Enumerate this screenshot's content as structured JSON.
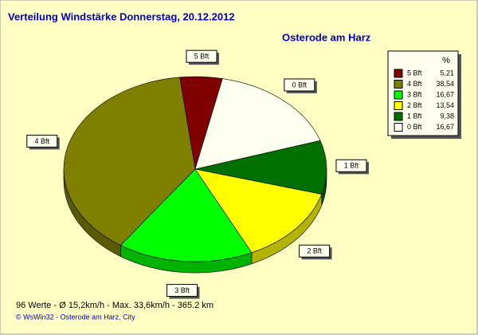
{
  "chart_data": {
    "type": "pie",
    "title": "Verteilung Windstärke  Donnerstag, 20.12.2012",
    "subtitle": "Osterode am Harz",
    "legend_title": "%",
    "categories": [
      "5 Bft",
      "4 Bft",
      "3 Bft",
      "2 Bft",
      "1 Bft",
      "0 Bft"
    ],
    "values": [
      5.21,
      38.54,
      16.67,
      13.54,
      9.38,
      16.67
    ],
    "value_labels": [
      "5,21",
      "38,54",
      "16,67",
      "13,54",
      "9,38",
      "16,67"
    ],
    "colors": [
      "#800000",
      "#808000",
      "#00ff00",
      "#ffff00",
      "#007000",
      "#fffff0"
    ],
    "legend": "top-right",
    "footer": "96 Werte   -   Ø 15,2km/h   -   Max. 33,6km/h   -   365.2 km",
    "credit": "© WsWin32   -   Osterode am Harz, City"
  }
}
